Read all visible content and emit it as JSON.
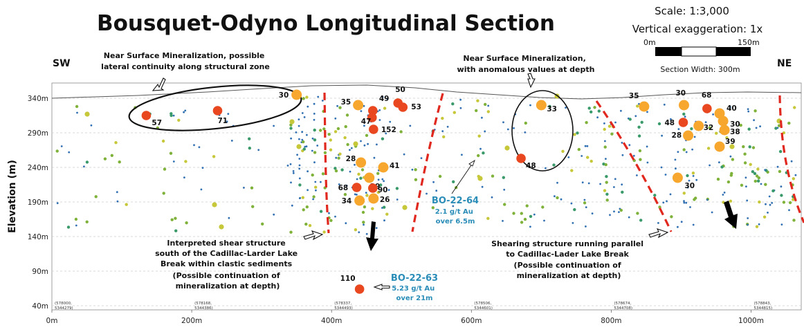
{
  "title": "Bousquet-Odyno Longitudinal Section",
  "scale_text": "Scale: 1:3,000",
  "exaggeration_text": "Vertical exaggeration: 1x",
  "scalebar": {
    "start": "0m",
    "end": "150m",
    "width_text": "Section Width: 300m"
  },
  "directions": {
    "left": "SW",
    "right": "NE"
  },
  "annotations": [
    {
      "id": "near-surface-left",
      "lines": [
        "Near Surface Mineralization, possible",
        "lateral continuity along structural zone"
      ]
    },
    {
      "id": "near-surface-right",
      "lines": [
        "Near Surface Mineralization,",
        "with anomalous values at depth"
      ]
    },
    {
      "id": "shear-left",
      "lines": [
        "Interpreted shear structure",
        "south of the Cadillac-Larder Lake",
        "Break within clastic sediments",
        "(Possible continuation of",
        "mineralization at depth)"
      ]
    },
    {
      "id": "shear-right",
      "lines": [
        "Shearing structure running parallel",
        "to Cadillac-Lader Lake Break",
        "(Possible continuation of",
        "mineralization at depth)"
      ]
    }
  ],
  "holes": [
    {
      "id": "BO-22-64",
      "name": "BO-22-64",
      "lines": [
        "2.1 g/t Au",
        "over 6.5m"
      ]
    },
    {
      "id": "BO-22-63",
      "name": "BO-22-63",
      "lines": [
        "5.23 g/t Au",
        "over 21m"
      ]
    }
  ],
  "coordinates": [
    {
      "x": 0,
      "text": [
        "(578000,",
        "5344279)"
      ]
    },
    {
      "x": 200,
      "text": [
        "(578168,",
        "5344386)"
      ]
    },
    {
      "x": 400,
      "text": [
        "(578337,",
        "5344493)"
      ]
    },
    {
      "x": 600,
      "text": [
        "(578506,",
        "5344601)"
      ]
    },
    {
      "x": 800,
      "text": [
        "(578674,",
        "5344708)"
      ]
    },
    {
      "x": 1000,
      "text": [
        "(578843,",
        "5344815)"
      ]
    }
  ],
  "colors": {
    "high": "#e8471f",
    "med_high": "#f7a72e",
    "medium": "#c7c73a",
    "low": "#7fb23a",
    "trace": "#2f6fb2",
    "fault": "#e0281e",
    "hole_label": "#2a8db8"
  },
  "chart_data": {
    "type": "scatter",
    "title": "Bousquet-Odyno Longitudinal Section",
    "xlabel": "",
    "ylabel": "Elevation (m)",
    "xlim": [
      0,
      1050
    ],
    "ylim": [
      35,
      360
    ],
    "x_ticks": [
      "0m",
      "200m",
      "400m",
      "600m",
      "800m",
      "1000m"
    ],
    "x_tick_values": [
      0,
      200,
      400,
      600,
      800,
      1000
    ],
    "y_ticks": [
      "40m",
      "90m",
      "140m",
      "190m",
      "240m",
      "290m",
      "340m"
    ],
    "y_tick_values": [
      40,
      90,
      140,
      190,
      240,
      290,
      340
    ],
    "grid": true,
    "labeled_points": [
      {
        "label": "57",
        "x": 135,
        "y": 315
      },
      {
        "label": "71",
        "x": 237,
        "y": 322
      },
      {
        "label": "30",
        "x": 350,
        "y": 345
      },
      {
        "label": "35",
        "x": 438,
        "y": 330
      },
      {
        "label": "49",
        "x": 459,
        "y": 322
      },
      {
        "label": "47",
        "x": 458,
        "y": 312
      },
      {
        "label": "50",
        "x": 495,
        "y": 333
      },
      {
        "label": "53",
        "x": 502,
        "y": 327
      },
      {
        "label": "152",
        "x": 460,
        "y": 295
      },
      {
        "label": "28",
        "x": 442,
        "y": 247
      },
      {
        "label": "41",
        "x": 474,
        "y": 240
      },
      {
        "label": "29",
        "x": 454,
        "y": 225
      },
      {
        "label": "68",
        "x": 436,
        "y": 211
      },
      {
        "label": "90",
        "x": 459,
        "y": 210
      },
      {
        "label": "34",
        "x": 440,
        "y": 192
      },
      {
        "label": "26",
        "x": 460,
        "y": 195
      },
      {
        "label": "110",
        "x": 440,
        "y": 64
      },
      {
        "label": "33",
        "x": 700,
        "y": 330
      },
      {
        "label": "48",
        "x": 671,
        "y": 253
      },
      {
        "label": "35",
        "x": 847,
        "y": 328
      },
      {
        "label": "30",
        "x": 904,
        "y": 330
      },
      {
        "label": "68",
        "x": 937,
        "y": 325
      },
      {
        "label": "40",
        "x": 955,
        "y": 318
      },
      {
        "label": "48",
        "x": 903,
        "y": 305
      },
      {
        "label": "32",
        "x": 925,
        "y": 300
      },
      {
        "label": "30",
        "x": 960,
        "y": 307
      },
      {
        "label": "38",
        "x": 962,
        "y": 294
      },
      {
        "label": "28",
        "x": 910,
        "y": 286
      },
      {
        "label": "39",
        "x": 955,
        "y": 270
      },
      {
        "label": "30",
        "x": 895,
        "y": 225
      }
    ],
    "labeled_point_grades": [
      "high",
      "high",
      "med_high",
      "med_high",
      "high",
      "high",
      "high",
      "high",
      "high",
      "med_high",
      "med_high",
      "med_high",
      "high",
      "high",
      "med_high",
      "med_high",
      "high",
      "med_high",
      "high",
      "med_high",
      "med_high",
      "high",
      "med_high",
      "high",
      "med_high",
      "med_high",
      "med_high",
      "med_high",
      "med_high",
      "med_high"
    ]
  }
}
